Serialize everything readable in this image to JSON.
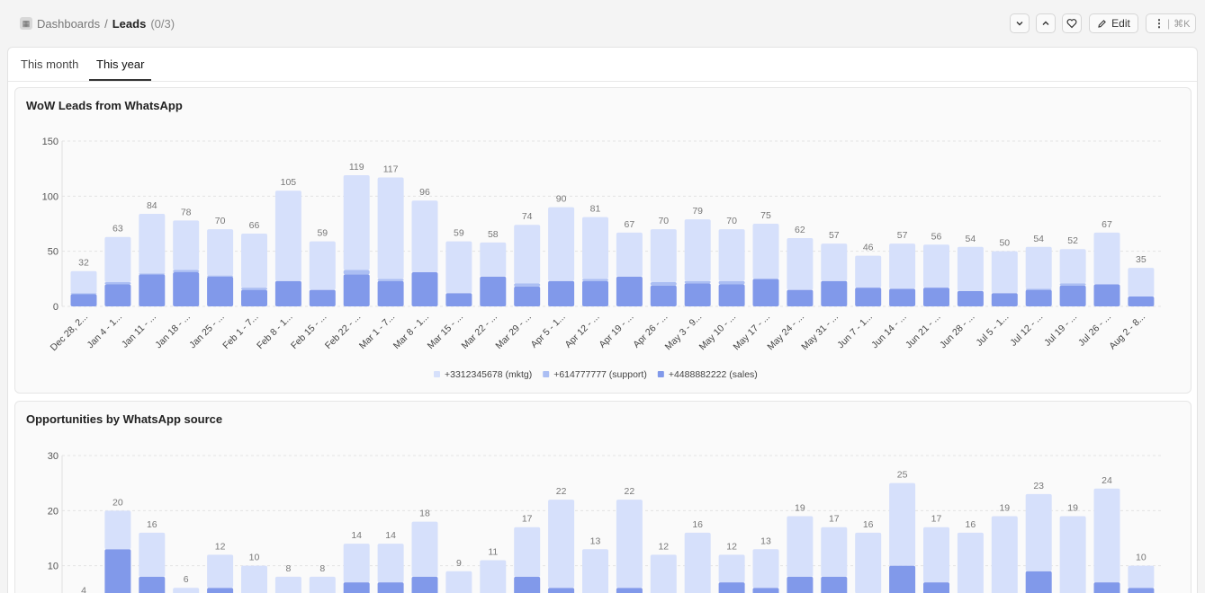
{
  "breadcrumb": {
    "root": "Dashboards",
    "separator": "/",
    "current": "Leads",
    "count": "(0/3)"
  },
  "toolbar": {
    "edit_label": "Edit",
    "shortcut_label": "⌘K"
  },
  "tabs": [
    {
      "label": "This month"
    },
    {
      "label": "This year"
    }
  ],
  "colors": {
    "mktg": "#d6e0fb",
    "support": "#abbef3",
    "sales": "#8199ea"
  },
  "chart_data": [
    {
      "type": "bar",
      "stacked": true,
      "title": "WoW Leads from WhatsApp",
      "ylim": [
        0,
        150
      ],
      "yticks": [
        "150",
        "100",
        "50",
        "0"
      ],
      "yticks_values": [
        150,
        100,
        50,
        0
      ],
      "grid": true,
      "legend_position": "bottom",
      "categories": [
        "Dec 28, 2...",
        "Jan 4 - 1...",
        "Jan 11 - ...",
        "Jan 18 - ...",
        "Jan 25 - ...",
        "Feb 1 - 7...",
        "Feb 8 - 1...",
        "Feb 15 - ...",
        "Feb 22 - ...",
        "Mar 1 - 7...",
        "Mar 8 - 1...",
        "Mar 15 - ...",
        "Mar 22 - ...",
        "Mar 29 - ...",
        "Apr 5 - 1...",
        "Apr 12 - ...",
        "Apr 19 - ...",
        "Apr 26 - ...",
        "May 3 - 9...",
        "May 10 - ...",
        "May 17 - ...",
        "May 24 - ...",
        "May 31 - ...",
        "Jun 7 - 1...",
        "Jun 14 - ...",
        "Jun 21 - ...",
        "Jun 28 - ...",
        "Jul 5 - 1...",
        "Jul 12 - ...",
        "Jul 19 - ...",
        "Jul 26 - ...",
        "Aug 2 - 8..."
      ],
      "totals": [
        32,
        63,
        84,
        78,
        70,
        66,
        105,
        59,
        119,
        117,
        96,
        59,
        58,
        74,
        90,
        81,
        67,
        70,
        79,
        70,
        75,
        62,
        57,
        46,
        57,
        56,
        54,
        50,
        54,
        52,
        67,
        35
      ],
      "series": [
        {
          "name": "+4488882222 (sales)",
          "values": [
            11,
            20,
            29,
            31,
            27,
            15,
            23,
            15,
            29,
            23,
            31,
            12,
            27,
            18,
            23,
            23,
            27,
            19,
            21,
            20,
            25,
            15,
            23,
            17,
            16,
            17,
            14,
            12,
            15,
            19,
            20,
            9
          ]
        },
        {
          "name": "+614777777 (support)",
          "values": [
            1,
            2,
            1,
            2,
            1,
            2,
            0,
            0,
            4,
            2,
            0,
            0,
            0,
            3,
            0,
            2,
            0,
            3,
            2,
            3,
            0,
            0,
            0,
            0,
            0,
            0,
            0,
            0,
            1,
            2,
            0,
            0
          ]
        },
        {
          "name": "+3312345678 (mktg)",
          "values": [
            20,
            41,
            54,
            45,
            42,
            49,
            82,
            44,
            86,
            92,
            65,
            47,
            31,
            53,
            67,
            56,
            40,
            48,
            56,
            47,
            50,
            47,
            34,
            29,
            41,
            39,
            40,
            38,
            38,
            31,
            47,
            26
          ]
        }
      ],
      "legend": [
        "+3312345678 (mktg)",
        "+614777777 (support)",
        "+4488882222 (sales)"
      ]
    },
    {
      "type": "bar",
      "stacked": true,
      "title": "Opportunities by WhatsApp source",
      "ylim": [
        0,
        30
      ],
      "yticks": [
        "30",
        "20",
        "10"
      ],
      "yticks_values": [
        30,
        20,
        10
      ],
      "grid": true,
      "totals": [
        4,
        20,
        16,
        6,
        12,
        10,
        8,
        8,
        14,
        14,
        18,
        9,
        11,
        17,
        22,
        13,
        22,
        12,
        16,
        12,
        13,
        19,
        17,
        16,
        25,
        17,
        16,
        19,
        23,
        19,
        24,
        10
      ],
      "series": [
        {
          "name": "sales",
          "values": [
            0,
            13,
            8,
            0,
            6,
            0,
            3,
            0,
            7,
            7,
            8,
            0,
            0,
            8,
            6,
            0,
            6,
            0,
            0,
            7,
            6,
            8,
            8,
            5,
            10,
            7,
            0,
            0,
            9,
            0,
            7,
            6
          ]
        },
        {
          "name": "support",
          "values": [
            0,
            0,
            0,
            0,
            0,
            0,
            0,
            0,
            0,
            0,
            0,
            0,
            0,
            0,
            0,
            0,
            0,
            0,
            0,
            0,
            0,
            0,
            0,
            0,
            0,
            0,
            0,
            0,
            0,
            0,
            0,
            0
          ]
        },
        {
          "name": "mktg",
          "values": [
            4,
            7,
            8,
            6,
            6,
            10,
            5,
            8,
            7,
            7,
            10,
            9,
            11,
            9,
            16,
            13,
            16,
            12,
            16,
            5,
            7,
            11,
            9,
            11,
            15,
            10,
            16,
            19,
            14,
            19,
            17,
            4
          ]
        }
      ]
    }
  ]
}
